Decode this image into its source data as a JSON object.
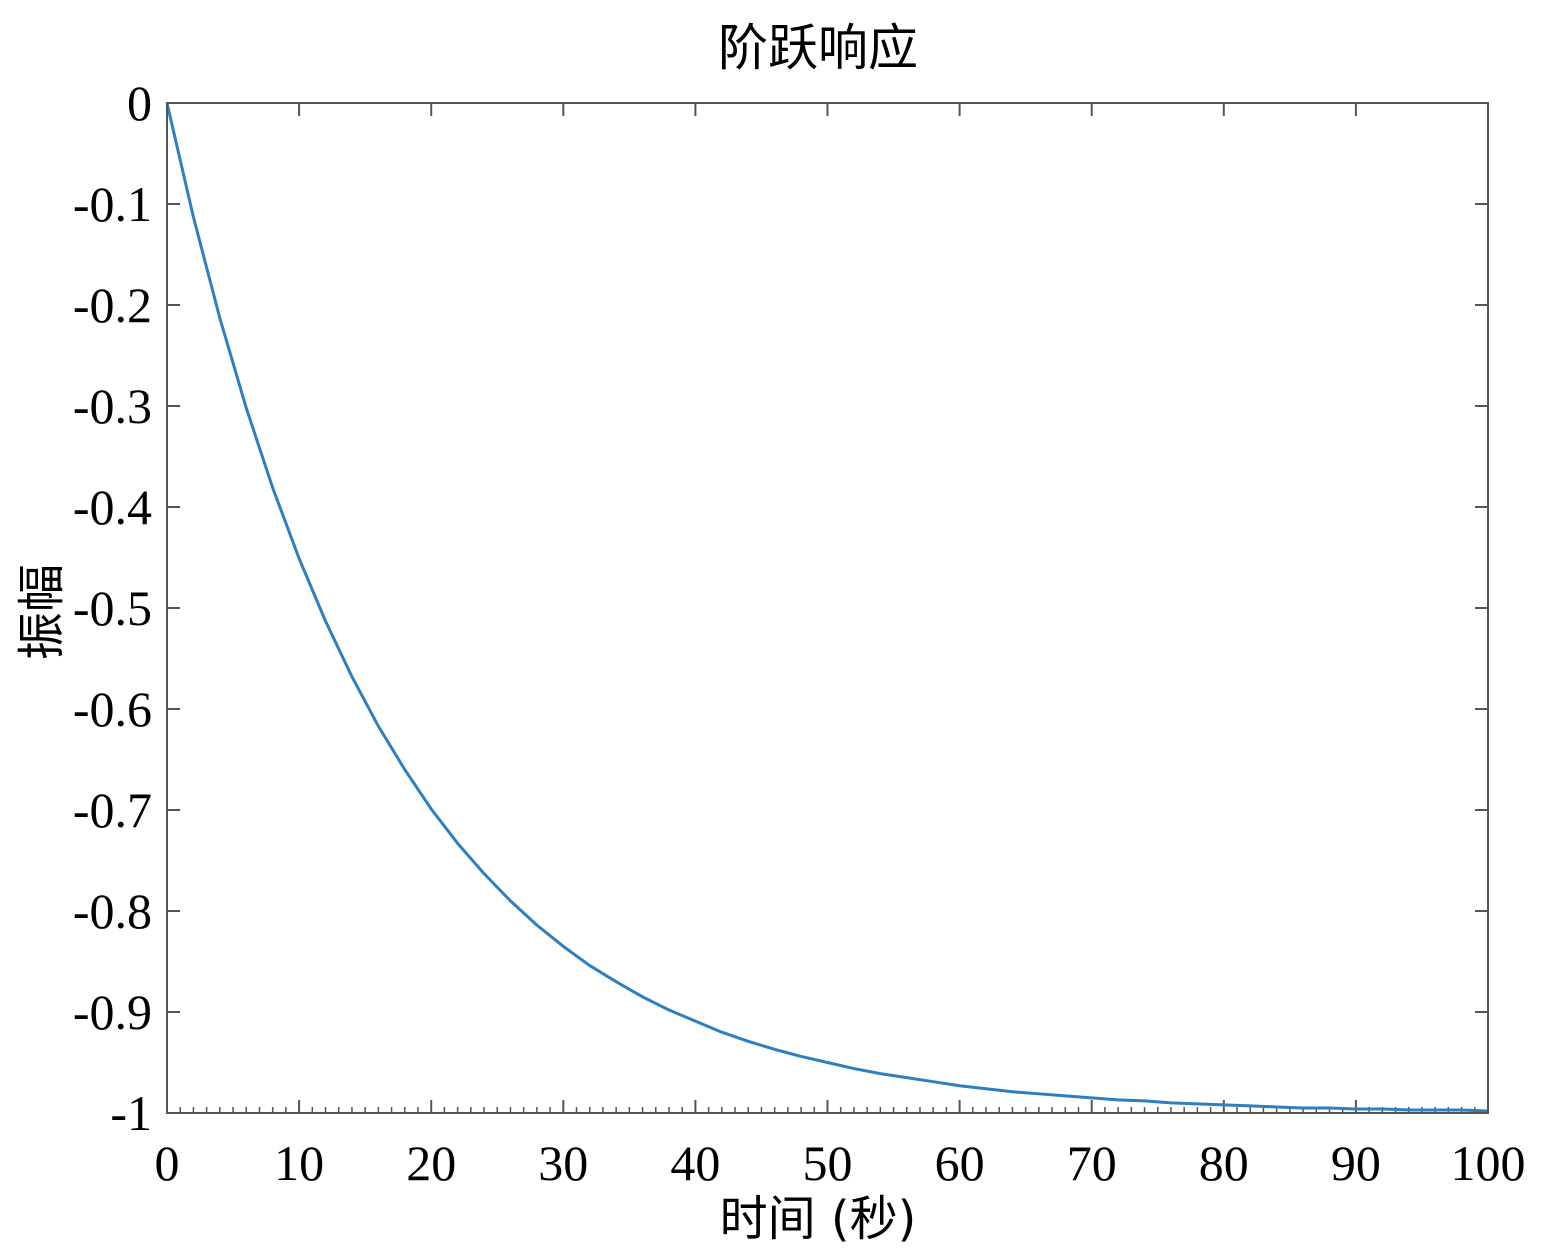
{
  "chart_data": {
    "type": "line",
    "title": "阶跃响应",
    "xlabel": "时间 (秒)",
    "ylabel": "振幅",
    "xlim": [
      0,
      100
    ],
    "ylim": [
      -1,
      0
    ],
    "xticks": [
      "0",
      "10",
      "20",
      "30",
      "40",
      "50",
      "60",
      "70",
      "80",
      "90",
      "100"
    ],
    "yticks": [
      "0",
      "-0.1",
      "-0.2",
      "-0.3",
      "-0.4",
      "-0.5",
      "-0.6",
      "-0.7",
      "-0.8",
      "-0.9",
      "-1"
    ],
    "grid": false,
    "line_color": "#2f7fc0",
    "series": [
      {
        "x": [
          0,
          2,
          4,
          6,
          8,
          10,
          12,
          14,
          16,
          18,
          20,
          22,
          24,
          26,
          28,
          30,
          32,
          34,
          36,
          38,
          40,
          42,
          44,
          46,
          48,
          50,
          52,
          54,
          56,
          58,
          60,
          62,
          64,
          66,
          68,
          70,
          72,
          74,
          76,
          78,
          80,
          82,
          84,
          86,
          88,
          90,
          92,
          94,
          96,
          98,
          100
        ],
        "y": [
          0,
          -0.113,
          -0.213,
          -0.302,
          -0.381,
          -0.451,
          -0.513,
          -0.568,
          -0.617,
          -0.66,
          -0.699,
          -0.733,
          -0.763,
          -0.79,
          -0.814,
          -0.835,
          -0.854,
          -0.87,
          -0.885,
          -0.898,
          -0.909,
          -0.92,
          -0.929,
          -0.937,
          -0.944,
          -0.95,
          -0.956,
          -0.961,
          -0.965,
          -0.969,
          -0.973,
          -0.976,
          -0.979,
          -0.981,
          -0.983,
          -0.985,
          -0.987,
          -0.988,
          -0.99,
          -0.991,
          -0.992,
          -0.993,
          -0.994,
          -0.995,
          -0.995,
          -0.996,
          -0.996,
          -0.997,
          -0.997,
          -0.997,
          -0.998
        ]
      }
    ]
  }
}
